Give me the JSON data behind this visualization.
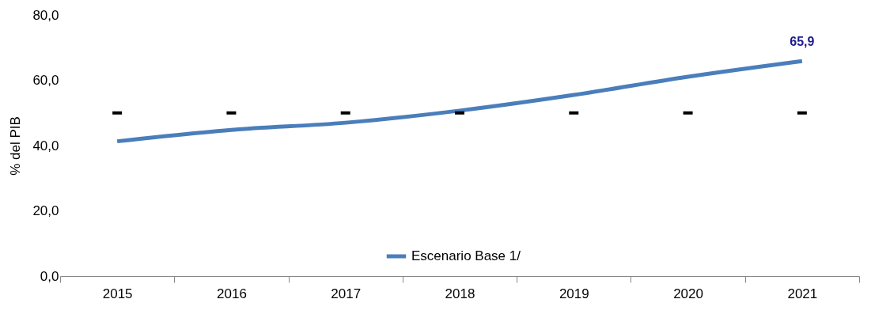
{
  "chart_data": {
    "type": "line",
    "ylabel": "% del PIB",
    "categories": [
      "2015",
      "2016",
      "2017",
      "2018",
      "2019",
      "2020",
      "2021"
    ],
    "series": [
      {
        "name": "Escenario Base 1/",
        "color": "#4a7ebb",
        "values": [
          41.3,
          44.8,
          47.0,
          50.7,
          55.5,
          61.1,
          65.9
        ],
        "value_labels": [
          null,
          null,
          null,
          null,
          null,
          null,
          "65,9"
        ]
      },
      {
        "type": "scatter",
        "color": "#000000",
        "values": [
          50,
          50,
          50,
          50,
          50,
          50,
          50
        ]
      }
    ],
    "ylim": [
      0,
      80
    ],
    "yticks": [
      {
        "value": 0,
        "label": "0,0"
      },
      {
        "value": 20,
        "label": "20,0"
      },
      {
        "value": 40,
        "label": "40,0"
      },
      {
        "value": 60,
        "label": "60,0"
      },
      {
        "value": 80,
        "label": "80,0"
      }
    ],
    "grid": false,
    "legend": "bottom"
  }
}
